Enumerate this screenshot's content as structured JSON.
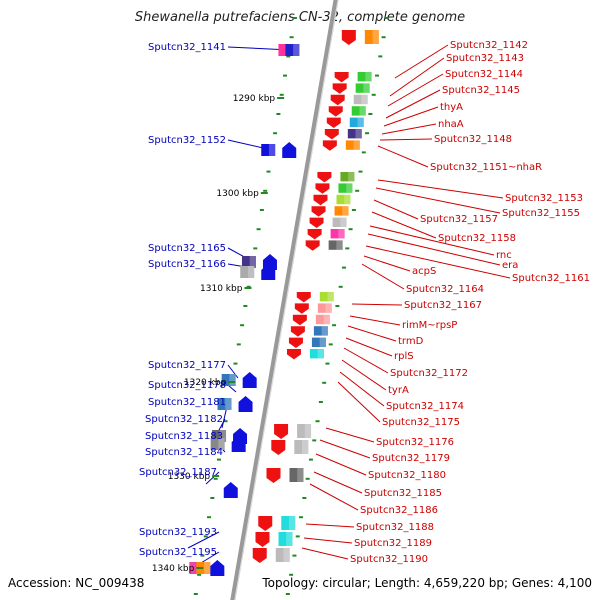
{
  "title": "Shewanella putrefaciens CN-32, complete genome",
  "accession": "Accession: NC_009438",
  "topology": "Topology: circular; Length: 4,659,220 bp; Genes: 4,100",
  "colors": {
    "left_labels": "#0000bb",
    "right_labels": "#cc0000",
    "ticks": "#228822",
    "backbone": "#999999"
  },
  "kbp_marks": [
    "1290 kbp",
    "1300 kbp",
    "1310 kbp",
    "1320 kbp",
    "1330 kbp",
    "1340 kbp"
  ],
  "left_labels": [
    "Sputcn32_1141",
    "Sputcn32_1152",
    "Sputcn32_1165",
    "Sputcn32_1166",
    "Sputcn32_1177",
    "Sputcn32_1178",
    "Sputcn32_1181",
    "Sputcn32_1182",
    "Sputcn32_1183",
    "Sputcn32_1184",
    "Sputcn32_1187",
    "Sputcn32_1193",
    "Sputcn32_1195"
  ],
  "right_labels": [
    "Sputcn32_1142",
    "Sputcn32_1143",
    "Sputcn32_1144",
    "Sputcn32_1145",
    "thyA",
    "nhaA",
    "Sputcn32_1148",
    "Sputcn32_1151~nhaR",
    "Sputcn32_1153",
    "Sputcn32_1155",
    "Sputcn32_1157",
    "Sputcn32_1158",
    "rnc",
    "era",
    "Sputcn32_1161",
    "acpS",
    "Sputcn32_1164",
    "Sputcn32_1167",
    "rimM~rpsP",
    "trmD",
    "rplS",
    "Sputcn32_1172",
    "tyrA",
    "Sputcn32_1174",
    "Sputcn32_1175",
    "Sputcn32_1176",
    "Sputcn32_1179",
    "Sputcn32_1180",
    "Sputcn32_1185",
    "Sputcn32_1186",
    "Sputcn32_1188",
    "Sputcn32_1189",
    "Sputcn32_1190"
  ],
  "left_genes": [
    {
      "colors": [
        "#ff3399",
        "#2222cc"
      ]
    },
    {
      "colors": [
        "#1111dd",
        "#1111dd"
      ]
    },
    {
      "colors": [
        "#443388",
        "#1111dd"
      ]
    },
    {
      "colors": [
        "#aaaaaa",
        "#1111dd"
      ]
    },
    {
      "colors": [
        "#3377bb",
        "#1111dd"
      ]
    },
    {
      "colors": [
        "#3377bb",
        "#1111dd"
      ]
    },
    {
      "colors": [
        "#666666",
        "#1111dd"
      ]
    },
    {
      "colors": [
        "#888888",
        "#1111dd"
      ]
    },
    {
      "colors": [
        "#1111dd"
      ]
    },
    {
      "colors": [
        "#ee44aa",
        "#ff8800",
        "#1111dd"
      ]
    }
  ],
  "right_genes": [
    {
      "colors": [
        "#ff8800"
      ]
    },
    {
      "colors": [
        "#33cc33",
        "#33cc33",
        "#bbbbbb",
        "#33cc33",
        "#22aadd",
        "#443388",
        "#ff8800"
      ]
    },
    {
      "colors": [
        "#66aa22",
        "#33cc33",
        "#aadd33",
        "#ff8800",
        "#bbbbbb",
        "#ff33aa",
        "#666666"
      ]
    },
    {
      "colors": [
        "#aadd33",
        "#ff9999",
        "#ff9999",
        "#3377bb",
        "#3377bb",
        "#22dddd"
      ]
    },
    {
      "colors": [
        "#bbbbbb",
        "#bbbbbb"
      ]
    },
    {
      "colors": [
        "#666666"
      ]
    },
    {
      "colors": [
        "#22dddd",
        "#22dddd",
        "#bbbbbb"
      ]
    }
  ]
}
